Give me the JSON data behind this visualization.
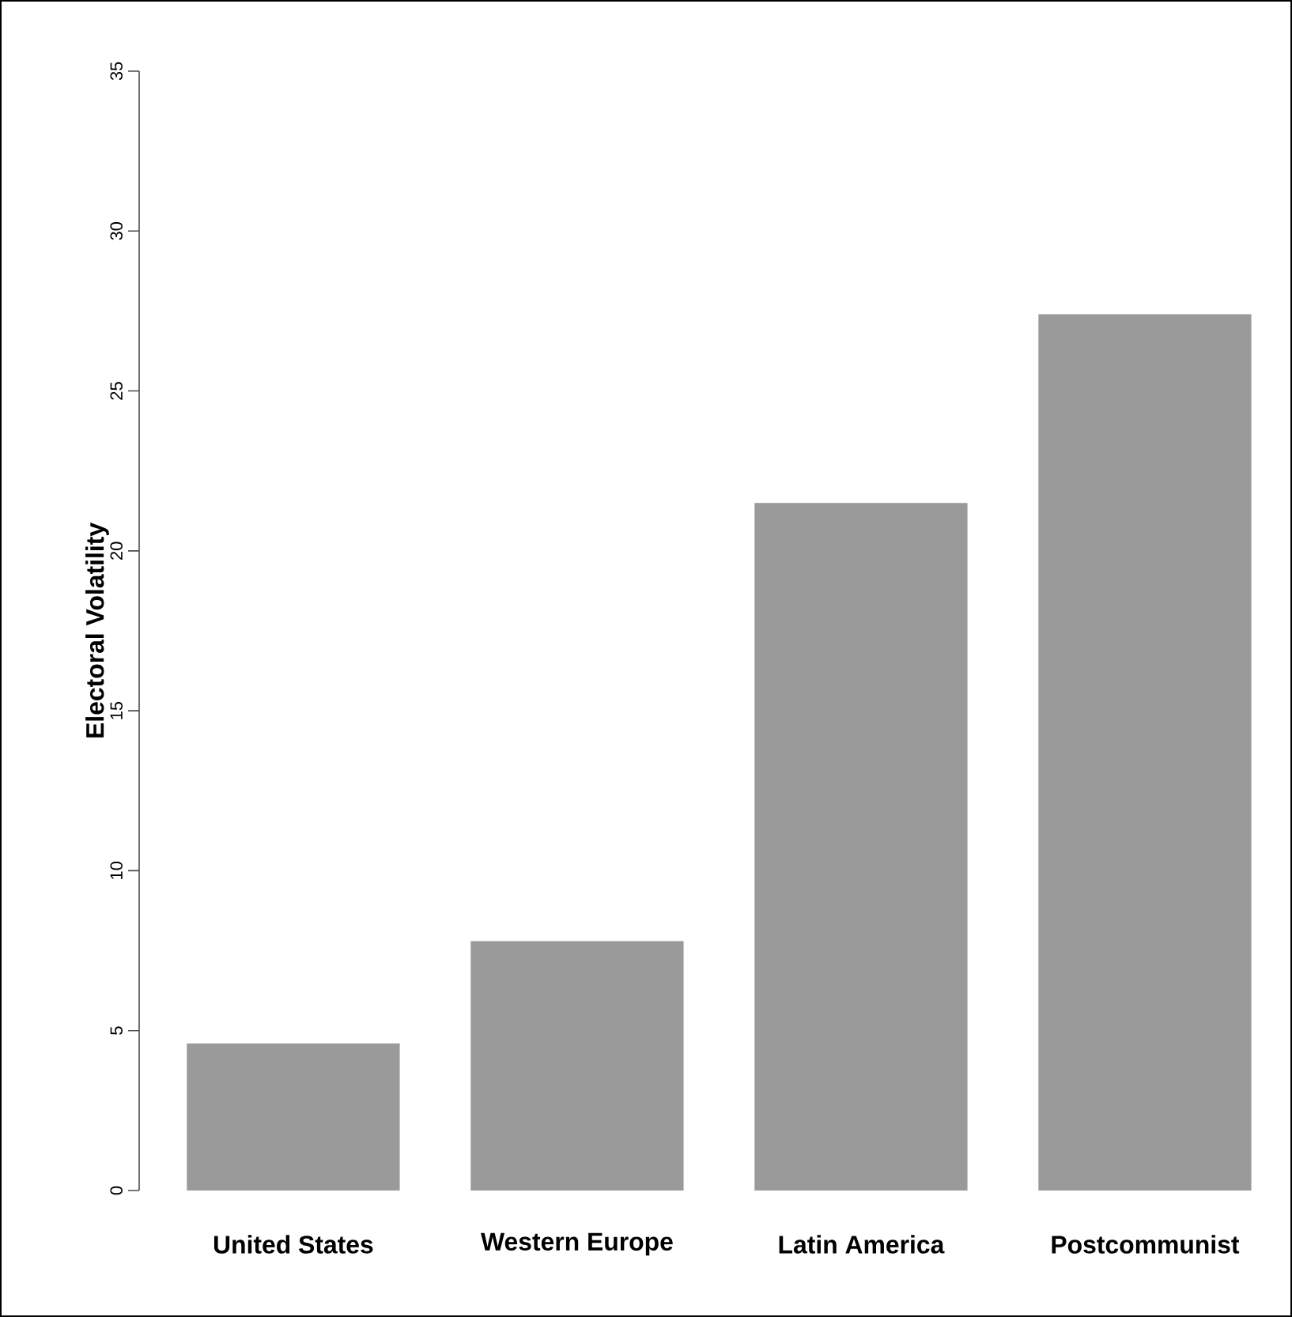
{
  "chart_data": {
    "type": "bar",
    "ylabel": "Electoral Volatility",
    "categories": [
      "United States",
      "Western Europe",
      "Latin America",
      "Postcommunist"
    ],
    "values": [
      4.6,
      7.8,
      21.5,
      27.4
    ],
    "color": "#9a9a9a",
    "ylim": [
      0,
      35
    ],
    "yticks": [
      0,
      5,
      10,
      15,
      20,
      25,
      30,
      35
    ]
  }
}
